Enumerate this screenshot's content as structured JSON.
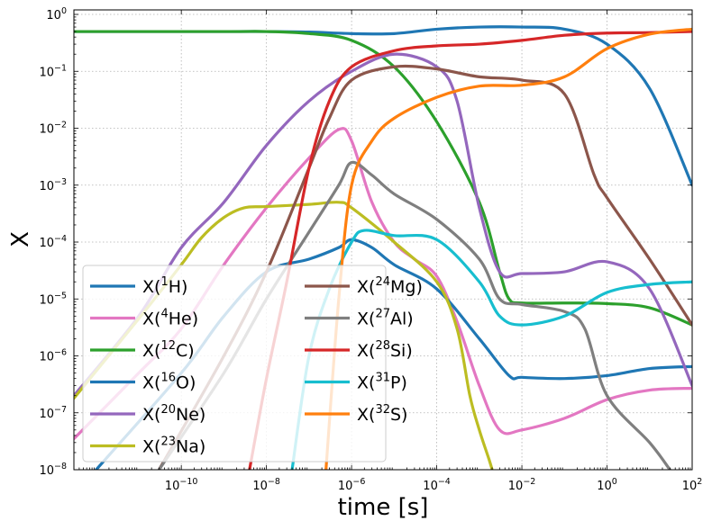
{
  "chart_data": {
    "type": "line",
    "xlabel": "time [s]",
    "ylabel": "X",
    "xscale": "log",
    "yscale": "log",
    "xlim": [
      3e-13,
      100
    ],
    "ylim": [
      1e-08,
      1.2
    ],
    "grid": true,
    "legend_position": "lower-left",
    "x_ticks": [
      {
        "value": 1e-10,
        "base": "10",
        "exp": "−10"
      },
      {
        "value": 1e-08,
        "base": "10",
        "exp": "−8"
      },
      {
        "value": 1e-06,
        "base": "10",
        "exp": "−6"
      },
      {
        "value": 0.0001,
        "base": "10",
        "exp": "−4"
      },
      {
        "value": 0.01,
        "base": "10",
        "exp": "−2"
      },
      {
        "value": 1,
        "base": "10",
        "exp": "0"
      },
      {
        "value": 100,
        "base": "10",
        "exp": "2"
      }
    ],
    "y_ticks": [
      {
        "value": 1e-08,
        "base": "10",
        "exp": "−8"
      },
      {
        "value": 1e-07,
        "base": "10",
        "exp": "−7"
      },
      {
        "value": 1e-06,
        "base": "10",
        "exp": "−6"
      },
      {
        "value": 1e-05,
        "base": "10",
        "exp": "−5"
      },
      {
        "value": 0.0001,
        "base": "10",
        "exp": "−4"
      },
      {
        "value": 0.001,
        "base": "10",
        "exp": "−3"
      },
      {
        "value": 0.01,
        "base": "10",
        "exp": "−2"
      },
      {
        "value": 0.1,
        "base": "10",
        "exp": "−1"
      },
      {
        "value": 1,
        "base": "10",
        "exp": "0"
      }
    ],
    "series": [
      {
        "name": "X(1H)",
        "pre": "X(",
        "sup": "1",
        "el": "H)",
        "color": "#1f77b4",
        "x": [
          3e-13,
          1e-11,
          1e-09,
          1e-08,
          1e-07,
          1e-06,
          1e-05,
          0.0001,
          0.001,
          0.01,
          0.1,
          1,
          10,
          100
        ],
        "y": [
          0.5,
          0.5,
          0.5,
          0.5,
          0.49,
          0.46,
          0.46,
          0.55,
          0.6,
          0.6,
          0.55,
          0.3,
          0.05,
          0.001
        ]
      },
      {
        "name": "X(4He)",
        "pre": "X(",
        "sup": "4",
        "el": "He)",
        "color": "#e377c2",
        "x": [
          3e-13,
          1e-11,
          1e-10,
          1e-09,
          1e-08,
          1e-07,
          5e-07,
          1e-06,
          3e-06,
          1e-05,
          3e-05,
          0.0001,
          0.0003,
          0.001,
          0.003,
          0.01,
          0.1,
          1,
          10,
          100
        ],
        "y": [
          3.5e-08,
          5e-07,
          3e-06,
          4e-05,
          0.0004,
          0.003,
          0.0095,
          0.006,
          0.0005,
          0.0001,
          5e-05,
          2.5e-05,
          4e-06,
          3e-07,
          5e-08,
          5e-08,
          8e-08,
          1.7e-07,
          2.5e-07,
          2.7e-07
        ]
      },
      {
        "name": "X(12C)",
        "pre": "X(",
        "sup": "12",
        "el": "C)",
        "color": "#2ca02c",
        "x": [
          3e-13,
          1e-09,
          1e-08,
          1e-07,
          1e-06,
          1e-05,
          0.0001,
          0.001,
          0.003,
          0.005,
          0.01,
          0.1,
          1,
          10,
          100
        ],
        "y": [
          0.5,
          0.5,
          0.5,
          0.46,
          0.35,
          0.12,
          0.013,
          0.0005,
          3e-05,
          1e-05,
          8.5e-06,
          8.5e-06,
          8.3e-06,
          7e-06,
          3.5e-06
        ]
      },
      {
        "name": "X(16O)",
        "pre": "X(",
        "sup": "16",
        "el": "O)",
        "color": "#1f77b4",
        "x": [
          1e-12,
          1e-10,
          1e-09,
          1e-08,
          1e-07,
          5e-07,
          1e-06,
          3e-06,
          1e-05,
          0.0001,
          0.001,
          0.005,
          0.01,
          0.1,
          1,
          10,
          100
        ],
        "y": [
          1e-08,
          5e-07,
          5e-06,
          3e-05,
          5e-05,
          8e-05,
          0.00011,
          8e-05,
          4e-05,
          1.5e-05,
          2e-06,
          4.5e-07,
          4.2e-07,
          4e-07,
          4.5e-07,
          6e-07,
          6.5e-07
        ]
      },
      {
        "name": "X(20Ne)",
        "pre": "X(",
        "sup": "20",
        "el": "Ne)",
        "color": "#9467bd",
        "x": [
          3e-13,
          1e-11,
          1e-10,
          1e-09,
          1e-08,
          1e-07,
          1e-06,
          1e-05,
          0.0001,
          0.0003,
          0.001,
          0.003,
          0.01,
          0.1,
          1,
          10,
          100
        ],
        "y": [
          2e-07,
          5e-06,
          8e-05,
          0.0005,
          0.005,
          0.03,
          0.1,
          0.2,
          0.12,
          0.03,
          0.0004,
          3e-05,
          2.8e-05,
          3e-05,
          4.5e-05,
          1.5e-05,
          3e-07
        ]
      },
      {
        "name": "X(23Na)",
        "pre": "X(",
        "sup": "23",
        "el": "Na)",
        "color": "#bcbd22",
        "x": [
          3e-13,
          1e-11,
          1e-10,
          3e-10,
          1e-09,
          3e-09,
          1e-08,
          1e-07,
          5e-07,
          1e-06,
          1e-05,
          0.0001,
          0.0003,
          0.0006,
          0.001,
          0.0017,
          0.002
        ],
        "y": [
          1.8e-07,
          4.5e-06,
          4e-05,
          0.00012,
          0.00027,
          0.0004,
          0.00042,
          0.00046,
          0.0005,
          0.0004,
          0.0001,
          2e-05,
          3e-06,
          2e-07,
          5e-08,
          1.5e-08,
          1e-08
        ]
      },
      {
        "name": "X(24Mg)",
        "pre": "X(",
        "sup": "24",
        "el": "Mg)",
        "color": "#8c564b",
        "x": [
          3e-11,
          1e-09,
          1e-08,
          1e-07,
          3e-07,
          1e-06,
          1e-05,
          0.0001,
          0.001,
          0.01,
          0.1,
          0.5,
          1,
          10,
          100
        ],
        "y": [
          1e-08,
          1e-06,
          3e-05,
          0.002,
          0.015,
          0.07,
          0.12,
          0.11,
          0.08,
          0.07,
          0.04,
          0.0015,
          0.0006,
          5e-05,
          3.5e-06
        ]
      },
      {
        "name": "X(27Al)",
        "pre": "X(",
        "sup": "27",
        "el": "Al)",
        "color": "#7f7f7f",
        "x": [
          3e-11,
          1e-09,
          1e-08,
          1e-07,
          5e-07,
          1e-06,
          3e-06,
          1e-05,
          0.0001,
          0.001,
          0.003,
          0.01,
          0.1,
          0.3,
          1,
          10,
          30
        ],
        "y": [
          1e-08,
          5e-07,
          1e-05,
          0.00015,
          0.001,
          0.0025,
          0.0015,
          0.0007,
          0.00025,
          5e-05,
          1e-05,
          8e-06,
          6e-06,
          3e-06,
          2e-07,
          3e-08,
          1e-08
        ]
      },
      {
        "name": "X(28Si)",
        "pre": "X(",
        "sup": "28",
        "el": "Si)",
        "color": "#d62728",
        "x": [
          4e-09,
          1e-08,
          3e-08,
          1e-07,
          3e-07,
          1e-06,
          1e-05,
          0.0001,
          0.001,
          0.01,
          0.1,
          1,
          10,
          100
        ],
        "y": [
          1e-08,
          4e-07,
          2e-05,
          0.002,
          0.03,
          0.12,
          0.23,
          0.28,
          0.3,
          0.35,
          0.43,
          0.47,
          0.48,
          0.5
        ]
      },
      {
        "name": "X(31P)",
        "pre": "X(",
        "sup": "31",
        "el": "P)",
        "color": "#17becf",
        "x": [
          4e-08,
          1e-07,
          3e-07,
          1e-06,
          2e-06,
          1e-05,
          0.0001,
          0.001,
          0.003,
          0.01,
          0.1,
          1,
          10,
          100
        ],
        "y": [
          1e-08,
          1e-06,
          1.5e-05,
          0.0001,
          0.00016,
          0.00013,
          0.00011,
          2e-05,
          5e-06,
          3.5e-06,
          5e-06,
          1.3e-05,
          1.8e-05,
          2e-05
        ]
      },
      {
        "name": "X(32S)",
        "pre": "X(",
        "sup": "32",
        "el": "S)",
        "color": "#ff7f0e",
        "x": [
          2.5e-07,
          5e-07,
          1e-06,
          3e-06,
          1e-05,
          0.0001,
          0.001,
          0.01,
          0.1,
          1,
          10,
          100
        ],
        "y": [
          1e-08,
          1e-05,
          0.001,
          0.006,
          0.015,
          0.035,
          0.055,
          0.057,
          0.08,
          0.25,
          0.45,
          0.55
        ]
      }
    ],
    "legend_columns": [
      [
        "X(1H)",
        "X(4He)",
        "X(12C)",
        "X(16O)",
        "X(20Ne)",
        "X(23Na)"
      ],
      [
        "X(24Mg)",
        "X(27Al)",
        "X(28Si)",
        "X(31P)",
        "X(32S)"
      ]
    ]
  }
}
